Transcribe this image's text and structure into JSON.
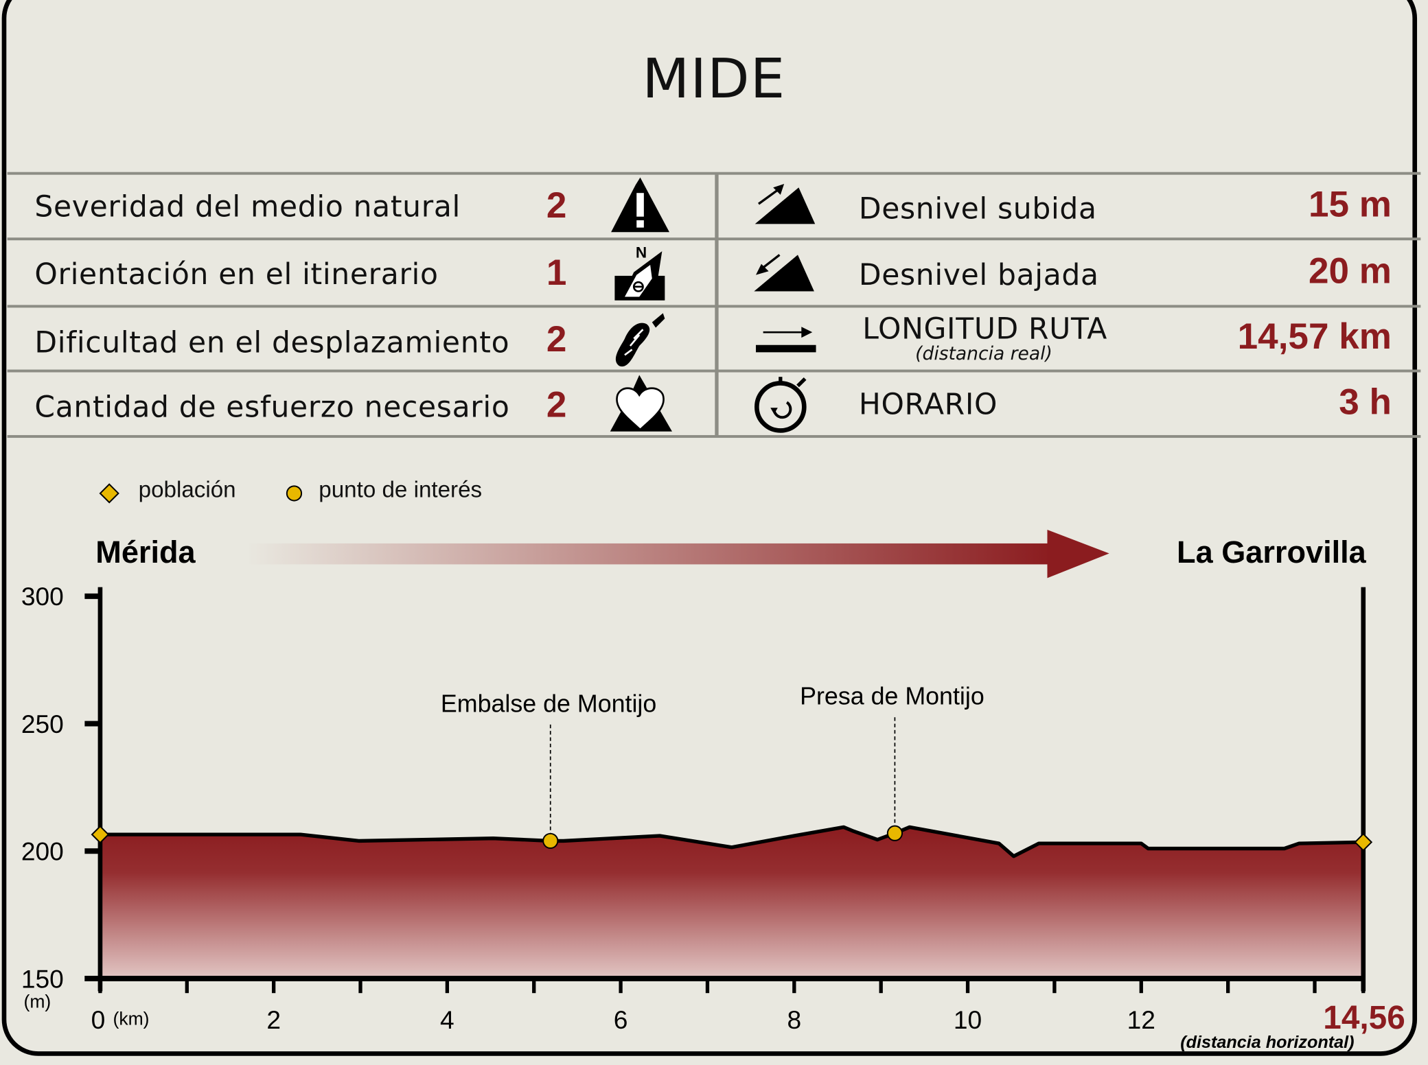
{
  "title": "MIDE",
  "left_rows": [
    {
      "label": "Severidad del medio natural",
      "value": "2",
      "icon": "mountain-warning-icon"
    },
    {
      "label": "Orientación en el itinerario",
      "value": "1",
      "icon": "compass-north-icon"
    },
    {
      "label": "Dificultad en el desplazamiento",
      "value": "2",
      "icon": "boot-sole-icon"
    },
    {
      "label": "Cantidad de esfuerzo necesario",
      "value": "2",
      "icon": "heart-mountain-icon"
    }
  ],
  "right_rows": [
    {
      "label": "Desnivel subida",
      "value": "15 m",
      "icon": "slope-up-icon"
    },
    {
      "label": "Desnivel bajada",
      "value": "20 m",
      "icon": "slope-down-icon"
    },
    {
      "label": "LONGITUD RUTA",
      "sublabel": "(distancia real)",
      "value": "14,57 km",
      "icon": "distance-arrow-icon"
    },
    {
      "label": "HORARIO",
      "value": "3 h",
      "icon": "stopwatch-icon"
    }
  ],
  "legend": {
    "town": "población",
    "poi": "punto de interés"
  },
  "colors": {
    "accent": "#8b1c1f",
    "marker": "#e8b800",
    "background": "#e9e8e0",
    "grid": "#8d8d85"
  },
  "route": {
    "start": "Mérida",
    "end": "La Garrovilla"
  },
  "chart_data": {
    "type": "area",
    "xlabel": "(km)",
    "ylabel": "(m)",
    "x_total_label": "14,56",
    "x_total_note": "(distancia horizontal)",
    "xlim": [
      0,
      14.56
    ],
    "ylim": [
      150,
      300
    ],
    "x_ticks": [
      0,
      2,
      4,
      6,
      8,
      10,
      12
    ],
    "y_ticks": [
      150,
      200,
      250,
      300
    ],
    "x": [
      0,
      2.31,
      2.98,
      4.53,
      5.19,
      5.34,
      6.45,
      7.28,
      8.0,
      8.57,
      8.67,
      8.96,
      9.16,
      9.33,
      10.36,
      10.53,
      10.82,
      12.0,
      12.08,
      13.65,
      13.82,
      14.56
    ],
    "y": [
      206.5,
      206.5,
      204,
      205,
      204,
      204,
      206,
      201.5,
      206,
      209.4,
      208,
      204.5,
      207,
      209.4,
      203,
      198,
      203,
      203,
      201,
      201,
      203,
      203.5
    ],
    "towns": [
      {
        "name": "Mérida",
        "x": 0,
        "y": 206.5
      },
      {
        "name": "La Garrovilla",
        "x": 14.56,
        "y": 203.5
      }
    ],
    "points_of_interest": [
      {
        "name": "Embalse de Montijo",
        "x": 5.19,
        "y": 204
      },
      {
        "name": "Presa de Montijo",
        "x": 9.16,
        "y": 207
      }
    ]
  }
}
